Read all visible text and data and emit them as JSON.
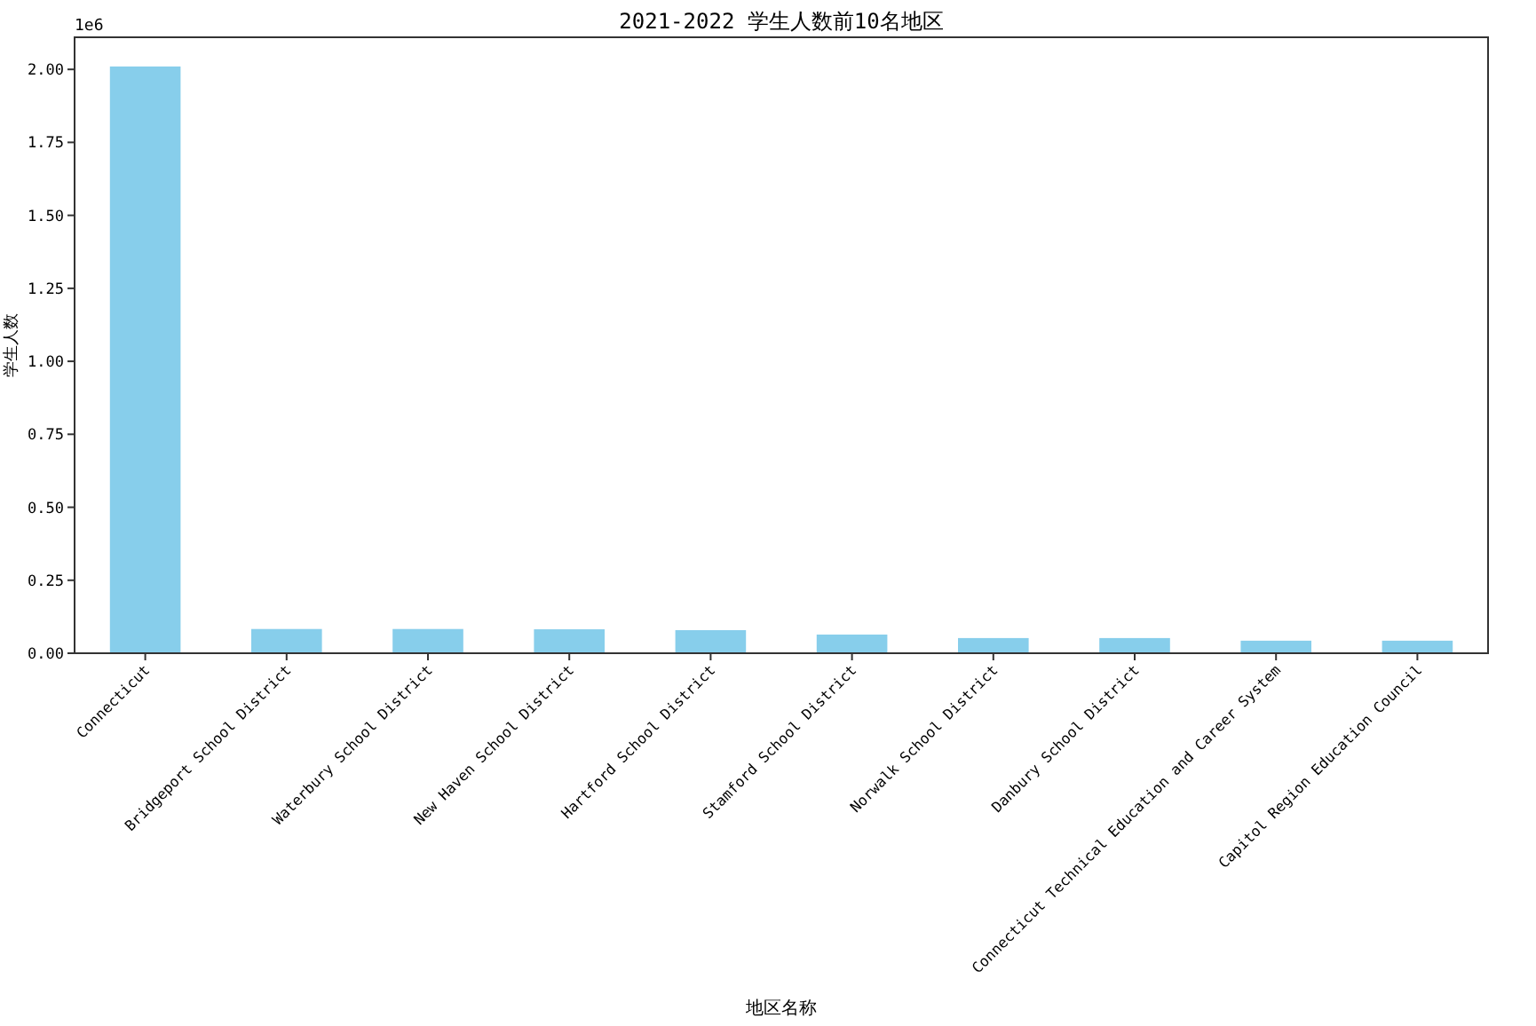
{
  "chart_data": {
    "type": "bar",
    "title": "2021-2022 学生人数前10名地区",
    "xlabel": "地区名称",
    "ylabel": "学生人数",
    "categories": [
      "Connecticut",
      "Bridgeport School District",
      "Waterbury School District",
      "New Haven School District",
      "Hartford School District",
      "Stamford School District",
      "Norwalk School District",
      "Danbury School District",
      "Connecticut Technical Education and Career System",
      "Capitol Region Education Council"
    ],
    "values": [
      2.01,
      0.083,
      0.083,
      0.082,
      0.079,
      0.064,
      0.052,
      0.052,
      0.043,
      0.043
    ],
    "color": "#87ceeb",
    "ylim": [
      0,
      2.11
    ],
    "yticks": [
      {
        "value": 0,
        "label": "0.00"
      },
      0.25,
      {
        "value": 0.5,
        "label": "0.50"
      },
      0.75,
      {
        "value": 1,
        "label": "1.00"
      },
      1.25,
      {
        "value": 1.5,
        "label": "1.50"
      },
      1.75,
      {
        "value": 2,
        "label": "2.00"
      }
    ],
    "annotations": [
      "1e6"
    ],
    "grid": false,
    "legend": false
  }
}
